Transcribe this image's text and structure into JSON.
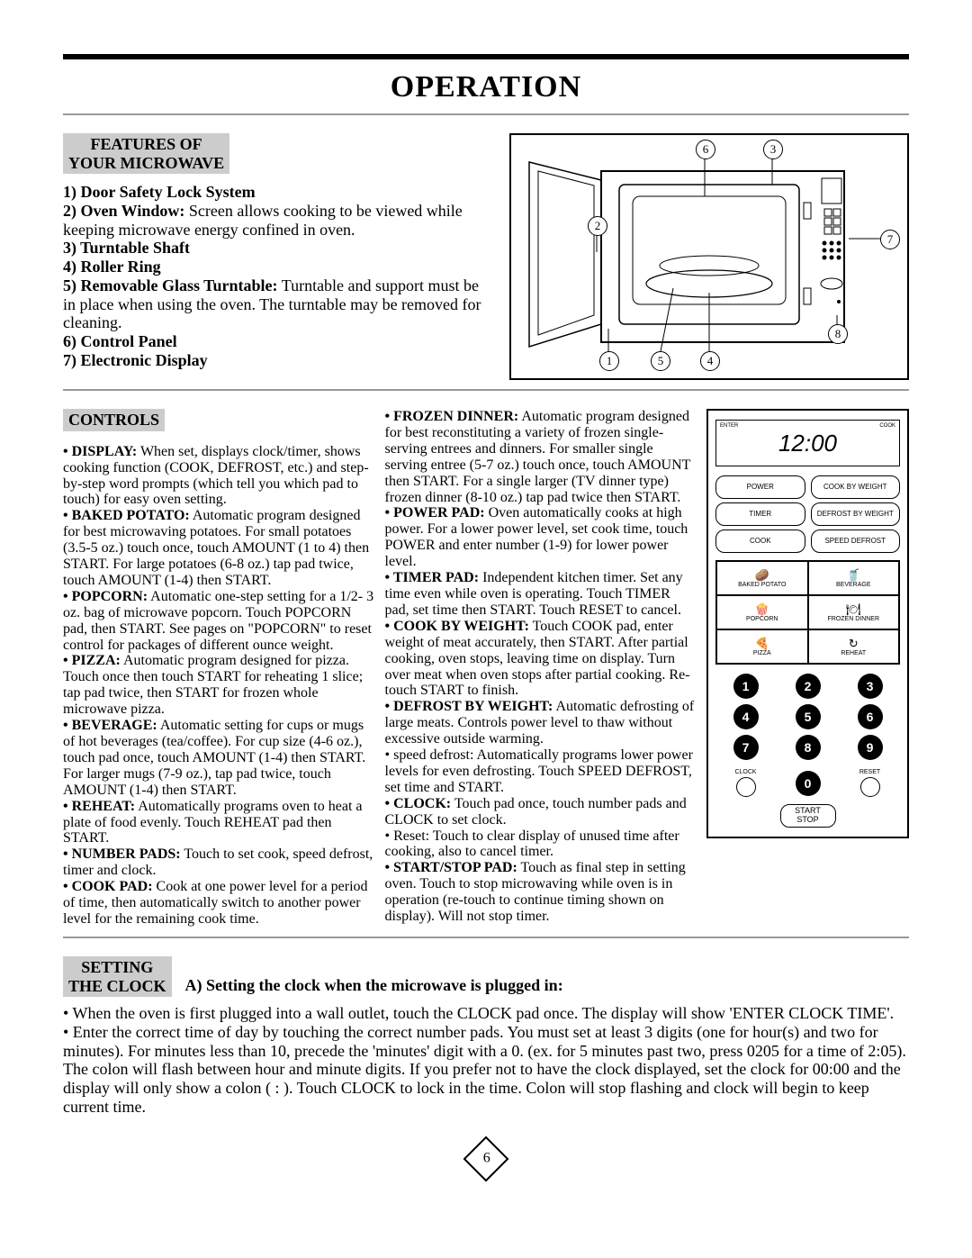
{
  "title": "OPERATION",
  "page_number": "6",
  "features": {
    "heading_l1": "FEATURES OF",
    "heading_l2": "YOUR MICROWAVE",
    "item1": "1) Door Safety Lock System",
    "item2_label": "2) Oven Window:",
    "item2_text": " Screen allows cooking to be viewed while keeping microwave energy confined in oven.",
    "item3": "3) Turntable Shaft",
    "item4": "4) Roller Ring",
    "item5_label": "5) Removable Glass Turntable:",
    "item5_text": " Turntable and support must be in place when using the oven. The turntable may be removed for cleaning.",
    "item6": "6) Control Panel",
    "item7": "7) Electronic Display"
  },
  "diagram_callouts": {
    "c1": "1",
    "c2": "2",
    "c3": "3",
    "c4": "4",
    "c5": "5",
    "c6": "6",
    "c7": "7",
    "c8": "8"
  },
  "controls": {
    "heading": "CONTROLS",
    "col1": [
      {
        "label": "• DISPLAY:",
        "text": " When set, displays clock/timer, shows cooking function (COOK, DEFROST, etc.) and step-by-step word prompts (which tell you which pad to touch) for easy oven setting."
      },
      {
        "label": "• BAKED POTATO:",
        "text": " Automatic program designed for best microwaving potatoes. For small potatoes (3.5-5 oz.) touch once, touch AMOUNT (1 to 4) then START. For large potatoes (6-8 oz.) tap pad twice, touch AMOUNT (1-4) then START."
      },
      {
        "label": "• POPCORN:",
        "text": " Automatic one-step setting for a 1/2- 3 oz. bag of microwave popcorn. Touch POPCORN pad, then START. See pages on \"POPCORN\" to reset control for packages of different ounce weight."
      },
      {
        "label": "• PIZZA:",
        "text": " Automatic program designed for pizza. Touch once then touch START for reheating 1 slice; tap pad twice, then START for frozen whole microwave pizza."
      },
      {
        "label": "• BEVERAGE:",
        "text": " Automatic setting for cups or mugs of hot beverages (tea/coffee). For cup size (4-6 oz.), touch pad once, touch AMOUNT (1-4) then START. For larger mugs (7-9 oz.), tap pad twice, touch AMOUNT (1-4) then START."
      },
      {
        "label": "• REHEAT:",
        "text": " Automatically programs oven to  heat a plate of food evenly. Touch REHEAT pad then START."
      },
      {
        "label": "• NUMBER PADS:",
        "text": " Touch to set cook, speed defrost, timer and clock."
      },
      {
        "label": "• COOK PAD:",
        "text": " Cook at one power level for a period of time, then automatically switch to another power level for the remaining cook time."
      }
    ],
    "col2": [
      {
        "label": "• FROZEN DINNER:",
        "text": " Automatic program designed for best reconstituting a variety of frozen single-serving entrees and dinners. For smaller single serving entree (5-7 oz.) touch once, touch AMOUNT then START. For a single larger (TV dinner type) frozen dinner (8-10 oz.) tap pad twice then START."
      },
      {
        "label": "• POWER PAD:",
        "text": " Oven automatically cooks at high power. For a lower power level, set cook time, touch POWER and enter number (1-9) for lower power level."
      },
      {
        "label": "• TIMER PAD:",
        "text": " Independent kitchen timer. Set any time even while oven is operating. Touch TIMER pad, set time then START. Touch RESET to cancel."
      },
      {
        "label": "• COOK BY WEIGHT:",
        "text": " Touch COOK pad, enter weight of meat accurately, then START. After partial cooking, oven stops, leaving time on display. Turn over meat when oven stops after partial cooking. Re-touch START to finish."
      },
      {
        "label": "• DEFROST BY WEIGHT:",
        "text": " Automatic defrosting of large meats. Controls power level to thaw without excessive outside warming."
      },
      {
        "label": "",
        "text": "• speed defrost: Automatically programs lower power levels for even defrosting. Touch SPEED DEFROST, set time and START."
      },
      {
        "label": "• CLOCK:",
        "text": " Touch pad once, touch number pads and CLOCK to set clock."
      },
      {
        "label": "",
        "text": "• Reset: Touch to clear display of unused time after cooking, also to cancel timer."
      },
      {
        "label": "• START/STOP PAD:",
        "text": " Touch as final step in setting oven. Touch to stop microwaving while oven is in operation (re-touch to continue timing shown on display). Will not stop timer."
      }
    ]
  },
  "panel": {
    "lcd": "12:00",
    "lcd_left": "ENTER",
    "lcd_right": "COOK",
    "buttons": [
      "POWER",
      "COOK BY WEIGHT",
      "TIMER",
      "DEFROST BY WEIGHT",
      "COOK",
      "SPEED DEFROST"
    ],
    "presets": [
      {
        "icon": "🥔",
        "label": "BAKED POTATO"
      },
      {
        "icon": "🥤",
        "label": "BEVERAGE"
      },
      {
        "icon": "🍿",
        "label": "POPCORN"
      },
      {
        "icon": "🍽",
        "label": "FROZEN DINNER"
      },
      {
        "icon": "🍕",
        "label": "PIZZA"
      },
      {
        "icon": "↻",
        "label": "REHEAT"
      }
    ],
    "numbers": [
      "1",
      "2",
      "3",
      "4",
      "5",
      "6",
      "7",
      "8",
      "9"
    ],
    "clock_label": "CLOCK",
    "zero": "0",
    "reset_label": "RESET",
    "startstop_l1": "START",
    "startstop_l2": "STOP"
  },
  "clock": {
    "heading_l1": "SETTING",
    "heading_l2": "THE CLOCK",
    "subheading": "A) Setting the clock when the microwave is plugged in:",
    "bullet1": "• When the oven is first plugged into a wall outlet, touch the CLOCK pad once. The display will show 'ENTER CLOCK TIME'.",
    "bullet2": "• Enter the correct time of day by touching the correct number pads. You must set at least 3 digits (one for hour(s) and two for minutes). For minutes less than 10, precede the 'minutes' digit with a 0. (ex. for 5 minutes past two, press 0205 for a time of 2:05). The colon will flash between hour and minute digits. If you prefer not to have the clock displayed, set the clock for 00:00 and the display will only show a colon ( : ). Touch CLOCK to lock in the time. Colon will stop flashing and clock will begin to keep current time."
  }
}
